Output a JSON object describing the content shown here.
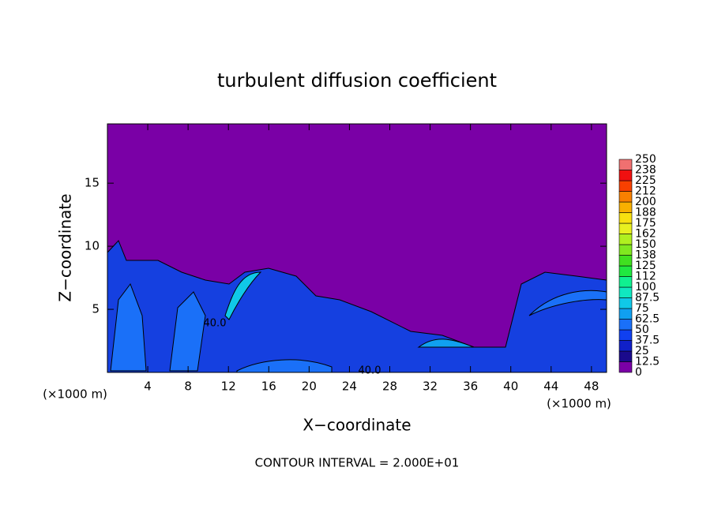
{
  "chart_data": {
    "type": "contour",
    "title": "turbulent diffusion coefficient",
    "x_label": "X−coordinate",
    "y_label": "Z−coordinate",
    "x_unit": "(×1000 m)",
    "y_unit": "(×1000 m)",
    "footer": "CONTOUR INTERVAL = 2.000E+01",
    "xlim": [
      0,
      49.5
    ],
    "xticks": [
      4,
      8,
      12,
      16,
      20,
      24,
      28,
      32,
      36,
      40,
      44,
      48
    ],
    "ylim": [
      0,
      19.7
    ],
    "yticks": [
      5,
      10,
      15
    ],
    "contour_labels": [
      "40.0",
      "40.0"
    ],
    "colorbar": {
      "ticks": [
        0,
        12.5,
        25,
        37.5,
        50,
        62.5,
        75,
        87.5,
        100,
        {
          "value": 112.5,
          "label": "112"
        },
        125,
        {
          "value": 137.5,
          "label": "138"
        },
        150,
        {
          "value": 162.5,
          "label": "162"
        },
        175,
        {
          "value": 187.5,
          "label": "188"
        },
        200,
        {
          "value": 212.5,
          "label": "212"
        },
        225,
        {
          "value": 237.5,
          "label": "238"
        },
        250
      ],
      "colors": [
        "#7a00a6",
        "#1a0a8c",
        "#1020c8",
        "#1040f0",
        "#1a70f8",
        "#10a0f0",
        "#10c8e8",
        "#10e8c0",
        "#10f090",
        "#20e840",
        "#40e020",
        "#80e820",
        "#b0f020",
        "#e8f020",
        "#f8e010",
        "#f8b000",
        "#f88000",
        "#f84000",
        "#f01010",
        "#f07070"
      ]
    }
  }
}
